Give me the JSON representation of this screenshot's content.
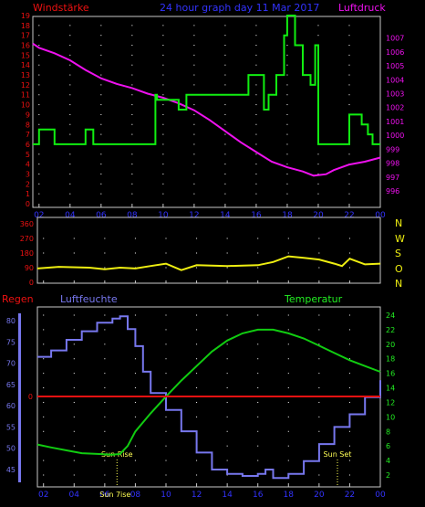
{
  "colors": {
    "background": "#000000",
    "frame": "#c8c8c8",
    "grid_dot": "#ffffff",
    "wind": "#11ee11",
    "pressure": "#ee11ee",
    "direction": "#eeee11",
    "humidity": "#7777ee",
    "temperature": "#11cc11",
    "rain": "#ee1111",
    "axis_left_top": "#ee1111",
    "axis_right_top": "#ee11ee",
    "compass": "#eeee11",
    "rain_label": "#ee1111",
    "humidity_label": "#7777ee",
    "temp_label": "#22ee22",
    "time": "#3333ff",
    "title_top": "#3333ff",
    "sun": "#ffff55"
  },
  "header": {
    "left_label": "Windstärke",
    "center_label": "24 hour graph day  11 Mar 2017",
    "right_label": "Luftdruck"
  },
  "compass_labels": [
    "N",
    "W",
    "S",
    "O",
    "N"
  ],
  "bottom_labels": {
    "rain": "Regen",
    "humidity": "Luftfeuchte",
    "temperature": "Temperatur",
    "sun_rise": "Sun Rise",
    "sun_set": "Sun Set",
    "sun_rise_time_label": "Sun 7ise"
  },
  "chart_data": [
    {
      "type": "line",
      "x_axis": {
        "unit": "hour",
        "range": [
          1.6,
          24.0
        ],
        "tick_labels": [
          "02",
          "04",
          "06",
          "08",
          "10",
          "12",
          "14",
          "16",
          "18",
          "20",
          "22",
          "00"
        ]
      },
      "y_left": {
        "range": [
          0,
          19
        ],
        "tick_labels": [
          "0",
          "1",
          "2",
          "3",
          "4",
          "5",
          "6",
          "7",
          "8",
          "9",
          "10",
          "11",
          "12",
          "13",
          "14",
          "15",
          "16",
          "17",
          "18",
          "19"
        ]
      },
      "y_right": {
        "range": [
          996,
          1007.5
        ],
        "tick_labels": [
          "996",
          "997",
          "998",
          "999",
          "1000",
          "1001",
          "1002",
          "1003",
          "1004",
          "1005",
          "1006",
          "1007"
        ]
      },
      "grid": true,
      "series": [
        {
          "name": "Windstärke",
          "axis": "left",
          "step": true,
          "x": [
            1.6,
            2.0,
            3.0,
            5.0,
            5.5,
            9.5,
            9.6,
            11.0,
            11.5,
            15.5,
            16.5,
            16.8,
            17.3,
            17.8,
            18.0,
            18.5,
            19.0,
            19.5,
            19.8,
            20.0,
            22.0,
            22.8,
            23.2,
            23.5,
            24.0
          ],
          "y": [
            6,
            7.5,
            6,
            7.5,
            6,
            11,
            10.5,
            9.5,
            11,
            13,
            9.5,
            11,
            13,
            17,
            19,
            16,
            13,
            12,
            16,
            6,
            9,
            8,
            7,
            6,
            6
          ]
        },
        {
          "name": "Luftdruck",
          "axis": "right",
          "step": false,
          "x": [
            1.6,
            2.0,
            3.0,
            4.0,
            5.0,
            6.0,
            7.0,
            8.0,
            9.0,
            10.0,
            11.0,
            12.0,
            13.0,
            14.0,
            15.0,
            16.0,
            17.0,
            18.0,
            19.0,
            19.7,
            20.5,
            21.0,
            22.0,
            23.0,
            24.0
          ],
          "y": [
            1006.6,
            1006.3,
            1005.9,
            1005.4,
            1004.7,
            1004.1,
            1003.7,
            1003.4,
            1003.0,
            1002.7,
            1002.3,
            1001.8,
            1001.1,
            1000.3,
            999.5,
            998.8,
            998.1,
            997.7,
            997.4,
            997.1,
            997.2,
            997.5,
            997.9,
            998.1,
            998.4
          ]
        }
      ]
    },
    {
      "type": "line",
      "x_axis": {
        "unit": "hour",
        "range": [
          1.6,
          24.0
        ]
      },
      "y_left": {
        "range": [
          0,
          360
        ],
        "tick_labels": [
          "0",
          "90",
          "180",
          "270",
          "360"
        ]
      },
      "grid": true,
      "series": [
        {
          "name": "direction",
          "x": [
            1.6,
            3.0,
            5.0,
            6.0,
            7.0,
            8.0,
            9.0,
            10.0,
            11.0,
            12.0,
            14.0,
            16.0,
            17.0,
            18.0,
            19.0,
            20.0,
            21.0,
            21.5,
            22.0,
            23.0,
            24.0
          ],
          "y": [
            85,
            95,
            90,
            80,
            90,
            85,
            100,
            115,
            75,
            105,
            100,
            105,
            125,
            160,
            150,
            140,
            115,
            100,
            145,
            110,
            115
          ]
        }
      ]
    },
    {
      "type": "line",
      "x_axis": {
        "unit": "hour",
        "range": [
          1.6,
          24.0
        ],
        "tick_labels": [
          "02",
          "04",
          "06",
          "08",
          "10",
          "12",
          "14",
          "16",
          "18",
          "20",
          "22",
          "00"
        ]
      },
      "y_left": {
        "range": [
          41,
          82
        ],
        "tick_labels": [
          "45",
          "50",
          "55",
          "60",
          "65",
          "70",
          "75",
          "80"
        ]
      },
      "y_right": {
        "range": [
          1,
          25
        ],
        "tick_labels": [
          "2",
          "4",
          "6",
          "8",
          "10",
          "12",
          "14",
          "16",
          "18",
          "20",
          "22",
          "24"
        ]
      },
      "grid": true,
      "series": [
        {
          "name": "Luftfeuchte",
          "axis": "left",
          "step": true,
          "x": [
            1.6,
            2.5,
            3.5,
            4.5,
            5.5,
            6.5,
            7.0,
            7.5,
            8.0,
            8.5,
            9.0,
            10.0,
            11.0,
            12.0,
            13.0,
            14.0,
            15.0,
            16.0,
            16.5,
            17.0,
            18.0,
            19.0,
            20.0,
            21.0,
            22.0,
            23.0,
            24.0
          ],
          "y": [
            71.5,
            73,
            75.5,
            77.5,
            79.5,
            80.5,
            81,
            78,
            74,
            68,
            63,
            59,
            54,
            49,
            45,
            44,
            43.5,
            44,
            45,
            43,
            44,
            47,
            51,
            55,
            58,
            62,
            66
          ]
        },
        {
          "name": "Temperatur",
          "axis": "right",
          "step": false,
          "x": [
            1.6,
            2.5,
            3.5,
            4.5,
            5.5,
            6.5,
            7.0,
            7.5,
            8.0,
            9.0,
            10.0,
            11.0,
            12.0,
            13.0,
            14.0,
            15.0,
            16.0,
            17.0,
            18.0,
            19.0,
            20.0,
            21.0,
            22.0,
            23.0,
            24.0
          ],
          "y": [
            6.2,
            5.8,
            5.4,
            5.0,
            4.9,
            4.8,
            4.9,
            6.0,
            8.0,
            10.5,
            12.8,
            15.0,
            17.0,
            19.0,
            20.5,
            21.5,
            22.0,
            22.0,
            21.5,
            20.8,
            19.8,
            18.8,
            17.8,
            17.0,
            16.2
          ]
        },
        {
          "name": "Regen",
          "axis": "rain",
          "step": false,
          "x": [
            1.6,
            24.0
          ],
          "y": [
            0,
            0
          ]
        }
      ],
      "rain_axis_label": "0",
      "annotations": [
        {
          "text": "Sun Rise",
          "x": 6.8
        },
        {
          "text": "Sun Set",
          "x": 21.2
        }
      ]
    }
  ]
}
